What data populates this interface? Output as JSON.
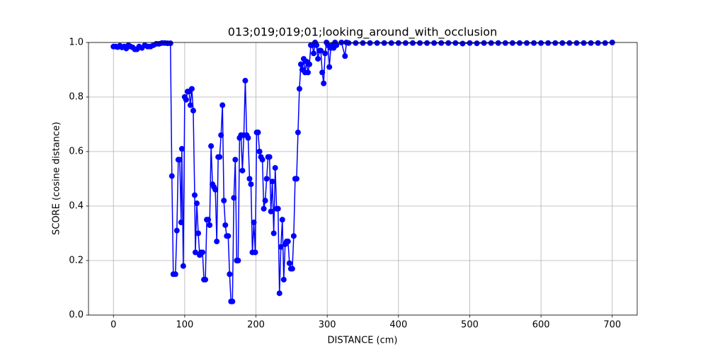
{
  "chart_data": {
    "type": "line",
    "title": "013;019;019;01;looking_around_with_occlusion",
    "xlabel": "DISTANCE (cm)",
    "ylabel": "SCORE (cosine distance)",
    "color": "#0000ff",
    "grid": true,
    "xlim": [
      -35,
      735
    ],
    "ylim": [
      0,
      1
    ],
    "xticks": [
      0,
      100,
      200,
      300,
      400,
      500,
      600,
      700
    ],
    "yticks": [
      {
        "value": 0,
        "label": "0.0"
      },
      {
        "value": 0.2,
        "label": "0.2"
      },
      {
        "value": 0.4,
        "label": "0.4"
      },
      {
        "value": 0.6,
        "label": "0.6"
      },
      {
        "value": 0.8,
        "label": "0.8"
      },
      {
        "value": 1,
        "label": "1.0"
      }
    ],
    "x": [
      0,
      3,
      6,
      9,
      12,
      15,
      18,
      21,
      24,
      27,
      30,
      33,
      36,
      40,
      44,
      48,
      52,
      56,
      60,
      64,
      68,
      72,
      76,
      80,
      82,
      84,
      87,
      89,
      91,
      93,
      95,
      96,
      98,
      100,
      102,
      104,
      106,
      108,
      110,
      112,
      114,
      115,
      117,
      119,
      121,
      123,
      125,
      127,
      129,
      131,
      133,
      135,
      137,
      139,
      141,
      143,
      145,
      147,
      149,
      151,
      153,
      155,
      157,
      159,
      161,
      163,
      165,
      167,
      169,
      171,
      173,
      175,
      177,
      179,
      181,
      183,
      185,
      187,
      189,
      191,
      193,
      195,
      197,
      199,
      201,
      203,
      205,
      207,
      209,
      211,
      213,
      215,
      217,
      219,
      221,
      223,
      225,
      227,
      229,
      231,
      233,
      235,
      237,
      239,
      241,
      243,
      245,
      247,
      249,
      251,
      253,
      255,
      257,
      259,
      261,
      263,
      265,
      267,
      269,
      271,
      273,
      275,
      277,
      279,
      281,
      283,
      285,
      287,
      289,
      291,
      293,
      295,
      297,
      299,
      301,
      303,
      305,
      307,
      309,
      311,
      313,
      320,
      325,
      327,
      330,
      340,
      350,
      360,
      370,
      380,
      390,
      400,
      410,
      420,
      430,
      440,
      450,
      460,
      470,
      480,
      490,
      500,
      510,
      520,
      530,
      540,
      550,
      560,
      570,
      580,
      590,
      600,
      610,
      620,
      630,
      640,
      650,
      660,
      670,
      680,
      690,
      700
    ],
    "values": [
      0.985,
      0.985,
      0.983,
      0.988,
      0.982,
      0.985,
      0.978,
      0.99,
      0.985,
      0.982,
      0.975,
      0.975,
      0.985,
      0.98,
      0.99,
      0.985,
      0.985,
      0.99,
      0.995,
      0.995,
      0.998,
      0.998,
      0.997,
      0.997,
      0.51,
      0.15,
      0.15,
      0.31,
      0.57,
      0.57,
      0.34,
      0.61,
      0.18,
      0.8,
      0.79,
      0.82,
      0.82,
      0.77,
      0.83,
      0.75,
      0.44,
      0.23,
      0.41,
      0.3,
      0.22,
      0.23,
      0.23,
      0.13,
      0.13,
      0.35,
      0.35,
      0.33,
      0.62,
      0.48,
      0.47,
      0.46,
      0.27,
      0.58,
      0.58,
      0.66,
      0.77,
      0.42,
      0.33,
      0.29,
      0.29,
      0.15,
      0.05,
      0.05,
      0.43,
      0.57,
      0.2,
      0.2,
      0.65,
      0.66,
      0.53,
      0.66,
      0.86,
      0.66,
      0.65,
      0.5,
      0.48,
      0.23,
      0.34,
      0.23,
      0.67,
      0.67,
      0.6,
      0.58,
      0.57,
      0.39,
      0.42,
      0.5,
      0.58,
      0.58,
      0.38,
      0.49,
      0.3,
      0.54,
      0.39,
      0.39,
      0.08,
      0.25,
      0.35,
      0.13,
      0.26,
      0.27,
      0.27,
      0.19,
      0.17,
      0.17,
      0.29,
      0.5,
      0.5,
      0.67,
      0.83,
      0.92,
      0.9,
      0.94,
      0.89,
      0.93,
      0.89,
      0.92,
      0.99,
      0.99,
      0.96,
      1.0,
      0.99,
      0.94,
      0.97,
      0.97,
      0.89,
      0.85,
      0.96,
      1.0,
      0.99,
      0.91,
      0.98,
      0.99,
      0.98,
      1.0,
      0.99,
      1.0,
      0.95,
      1.0,
      0.998,
      0.998,
      0.998,
      0.998,
      0.998,
      0.998,
      0.998,
      0.998,
      0.998,
      0.998,
      0.998,
      0.998,
      0.998,
      0.998,
      0.998,
      0.998,
      0.996,
      0.998,
      0.997,
      0.998,
      0.998,
      0.998,
      0.998,
      0.998,
      0.998,
      0.998,
      0.998,
      0.998,
      0.998,
      0.998,
      0.998,
      0.998,
      0.998,
      0.998,
      0.998,
      0.998,
      0.998,
      1.0
    ]
  }
}
